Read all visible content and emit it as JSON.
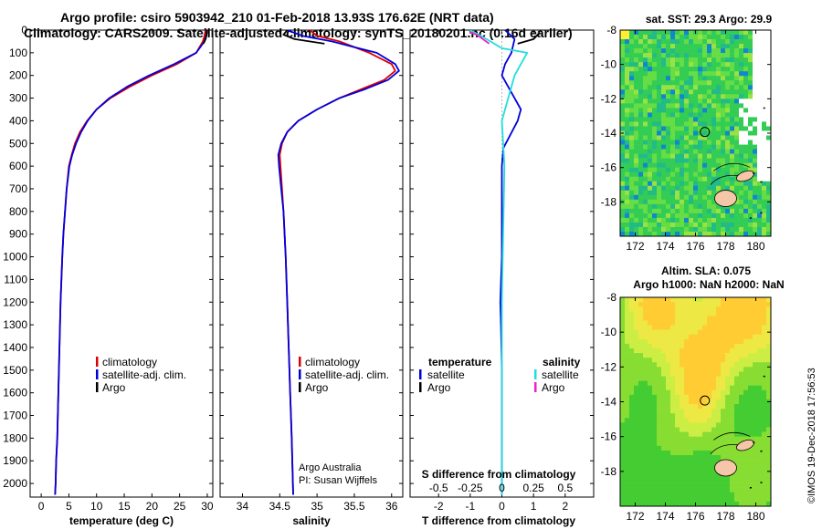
{
  "header": {
    "line1": "Argo profile: csiro 5903942_210 01-Feb-2018 13.93S 176.62E (NRT data)",
    "line2": "Climatology: CARS2009. Satellite-adjusted climatology: synTS_20180201.nc (0.16d earlier)"
  },
  "credit": "©IMOS 19-Dec-2018 17:56:53",
  "chart_data": [
    {
      "id": "temp",
      "type": "line",
      "xlabel": "temperature (deg C)",
      "ylabel": "",
      "xlim": [
        -2,
        31
      ],
      "ylim": [
        2060,
        0
      ],
      "xticks": [
        0,
        5,
        10,
        15,
        20,
        25,
        30
      ],
      "xticklabels": [
        "0",
        "5",
        "10",
        "15",
        "20",
        "25",
        "30"
      ],
      "yticks": [
        0,
        100,
        200,
        300,
        400,
        500,
        600,
        700,
        800,
        900,
        1000,
        1100,
        1200,
        1300,
        1400,
        1500,
        1600,
        1700,
        1800,
        1900,
        2000
      ],
      "legend": [
        {
          "label": "climatology",
          "color": "#dd0000"
        },
        {
          "label": "satellite-adj. clim.",
          "color": "#0000dd"
        },
        {
          "label": "Argo",
          "color": "#000000"
        }
      ],
      "series": [
        {
          "name": "climatology",
          "color": "#dd0000",
          "x": [
            29.7,
            29.5,
            29.2,
            28.0,
            24.5,
            20.0,
            16.0,
            12.5,
            10.0,
            8.3,
            7.0,
            6.1,
            5.5,
            5.0,
            4.6,
            4.3,
            4.0,
            3.8,
            3.5,
            3.3,
            3.1,
            2.9,
            2.7,
            2.6,
            2.5
          ],
          "y": [
            0,
            25,
            50,
            100,
            150,
            200,
            250,
            300,
            350,
            400,
            450,
            500,
            550,
            600,
            700,
            800,
            900,
            1000,
            1200,
            1400,
            1600,
            1800,
            1900,
            2000,
            2050
          ]
        },
        {
          "name": "satellite-adj. clim.",
          "color": "#0000dd",
          "x": [
            30.0,
            29.8,
            29.5,
            28.0,
            24.0,
            19.5,
            15.5,
            12.3,
            10.0,
            8.4,
            7.2,
            6.3,
            5.6,
            5.1,
            4.6,
            4.3,
            4.0,
            3.8,
            3.5,
            3.3,
            3.1,
            2.9,
            2.7,
            2.6,
            2.5
          ],
          "y": [
            0,
            25,
            50,
            100,
            150,
            200,
            250,
            300,
            350,
            400,
            450,
            500,
            550,
            600,
            700,
            800,
            900,
            1000,
            1200,
            1400,
            1600,
            1800,
            1900,
            2000,
            2050
          ]
        },
        {
          "name": "Argo",
          "color": "#000000",
          "x": [
            29.9,
            29.9,
            29.7,
            29.3
          ],
          "y": [
            0,
            20,
            40,
            60
          ]
        }
      ]
    },
    {
      "id": "sal",
      "type": "line",
      "xlabel": "salinity",
      "xlim": [
        33.7,
        36.15
      ],
      "ylim": [
        2060,
        0
      ],
      "xticks": [
        34,
        34.5,
        35,
        35.5,
        36
      ],
      "xticklabels": [
        "34",
        "34.5",
        "35",
        "35.5",
        "36"
      ],
      "yticks": [
        0,
        100,
        200,
        300,
        400,
        500,
        600,
        700,
        800,
        900,
        1000,
        1100,
        1200,
        1300,
        1400,
        1500,
        1600,
        1700,
        1800,
        1900,
        2000
      ],
      "legend": [
        {
          "label": "climatology",
          "color": "#dd0000"
        },
        {
          "label": "satellite-adj. clim.",
          "color": "#0000dd"
        },
        {
          "label": "Argo",
          "color": "#000000"
        }
      ],
      "annotation": [
        "Argo Australia",
        "PI: Susan Wijffels"
      ],
      "series": [
        {
          "name": "climatology",
          "color": "#dd0000",
          "x": [
            34.9,
            35.0,
            35.3,
            35.7,
            36.0,
            36.05,
            35.9,
            35.6,
            35.3,
            35.0,
            34.75,
            34.6,
            34.53,
            34.5,
            34.51,
            34.53,
            34.55,
            34.58,
            34.6,
            34.62,
            34.64,
            34.66,
            34.68
          ],
          "y": [
            0,
            25,
            50,
            100,
            150,
            180,
            220,
            260,
            300,
            350,
            400,
            450,
            500,
            550,
            600,
            700,
            800,
            1000,
            1200,
            1400,
            1600,
            1800,
            2050
          ]
        },
        {
          "name": "satellite-adj. clim.",
          "color": "#0000dd",
          "x": [
            34.6,
            34.8,
            35.2,
            35.8,
            36.05,
            36.1,
            35.95,
            35.65,
            35.3,
            35.0,
            34.75,
            34.6,
            34.52,
            34.48,
            34.49,
            34.52,
            34.55,
            34.58,
            34.6,
            34.62,
            34.64,
            34.66,
            34.68
          ],
          "y": [
            0,
            25,
            50,
            100,
            150,
            180,
            220,
            260,
            300,
            350,
            400,
            450,
            500,
            550,
            600,
            700,
            800,
            1000,
            1200,
            1400,
            1600,
            1800,
            2050
          ]
        },
        {
          "name": "Argo",
          "color": "#000000",
          "x": [
            34.6,
            34.55,
            34.7,
            35.1
          ],
          "y": [
            0,
            20,
            40,
            60
          ]
        }
      ]
    },
    {
      "id": "diff",
      "type": "line",
      "xlabel": "T difference from climatology",
      "xlim": [
        -2.9,
        2.9
      ],
      "ylim": [
        2060,
        0
      ],
      "xticks": [
        -2,
        -1,
        0,
        1,
        2
      ],
      "xticklabels": [
        "-2",
        "-1",
        "0",
        "1",
        "2"
      ],
      "upper_ticks": [
        -0.5,
        -0.25,
        0,
        0.25,
        0.5
      ],
      "upper_ticklabels": [
        "-0.5",
        "-0.25",
        "0",
        "0.25",
        "0.5"
      ],
      "upper_axis_label": "S difference from climatology",
      "upper_axis_range": [
        -0.725,
        0.725
      ],
      "yticks": [
        0,
        100,
        200,
        300,
        400,
        500,
        600,
        700,
        800,
        900,
        1000,
        1100,
        1200,
        1300,
        1400,
        1500,
        1600,
        1700,
        1800,
        1900,
        2000
      ],
      "legend_left_title": "temperature",
      "legend_left": [
        {
          "label": "satellite",
          "color": "#0000dd"
        },
        {
          "label": "Argo",
          "color": "#000000"
        }
      ],
      "legend_right_title": "salinity",
      "legend_right": [
        {
          "label": "satellite",
          "color": "#22dddd"
        },
        {
          "label": "Argo",
          "color": "#ee22cc"
        }
      ],
      "series": [
        {
          "name": "T satellite",
          "color": "#0000dd",
          "x": [
            0.1,
            0.4,
            0.3,
            0.1,
            0.0,
            0.2,
            0.4,
            0.6,
            0.5,
            0.2,
            0.05,
            0.0,
            0.0,
            0.0,
            -0.05,
            -0.03,
            0.0,
            0.0,
            0.0
          ],
          "y": [
            0,
            40,
            100,
            150,
            200,
            250,
            300,
            350,
            400,
            480,
            520,
            600,
            800,
            1000,
            1200,
            1300,
            1500,
            1800,
            2050
          ]
        },
        {
          "name": "T Argo",
          "color": "#000000",
          "x": [
            1.2,
            1.0,
            0.5
          ],
          "y": [
            10,
            40,
            60
          ]
        },
        {
          "name": "S satellite",
          "color": "#22dddd",
          "x": [
            -0.25,
            -0.15,
            0.0,
            0.2,
            0.1,
            0.0,
            0.02,
            0.0,
            0.0
          ],
          "y": [
            0,
            30,
            80,
            100,
            200,
            400,
            600,
            1200,
            2050
          ]
        },
        {
          "name": "S Argo",
          "color": "#ee22cc",
          "x": [
            -0.25,
            -0.2,
            -0.15,
            -0.1
          ],
          "y": [
            10,
            20,
            40,
            60
          ]
        }
      ]
    },
    {
      "id": "sst_map",
      "type": "heatmap",
      "title": "sat. SST: 29.3 Argo: 29.9",
      "xlim": [
        171,
        181
      ],
      "ylim": [
        -20,
        -8
      ],
      "xticks": [
        172,
        174,
        176,
        178,
        180
      ],
      "xticklabels": [
        "172",
        "174",
        "176",
        "178",
        "180"
      ],
      "yticks": [
        -8,
        -10,
        -12,
        -14,
        -16,
        -18
      ],
      "yticklabels": [
        "-8",
        "-10",
        "-12",
        "-14",
        "-16",
        "-18"
      ],
      "marker": {
        "lon": 176.62,
        "lat": -13.93
      }
    },
    {
      "id": "sla_map",
      "type": "heatmap",
      "title": "Altim. SLA: 0.075",
      "subtitle": "Argo h1000: NaN h2000: NaN",
      "xlim": [
        171,
        181
      ],
      "ylim": [
        -20,
        -8
      ],
      "xticks": [
        172,
        174,
        176,
        178,
        180
      ],
      "xticklabels": [
        "172",
        "174",
        "176",
        "178",
        "180"
      ],
      "yticks": [
        -8,
        -10,
        -12,
        -14,
        -16,
        -18
      ],
      "yticklabels": [
        "-8",
        "-10",
        "-12",
        "-14",
        "-16",
        "-18"
      ],
      "marker": {
        "lon": 176.62,
        "lat": -13.93
      }
    }
  ]
}
